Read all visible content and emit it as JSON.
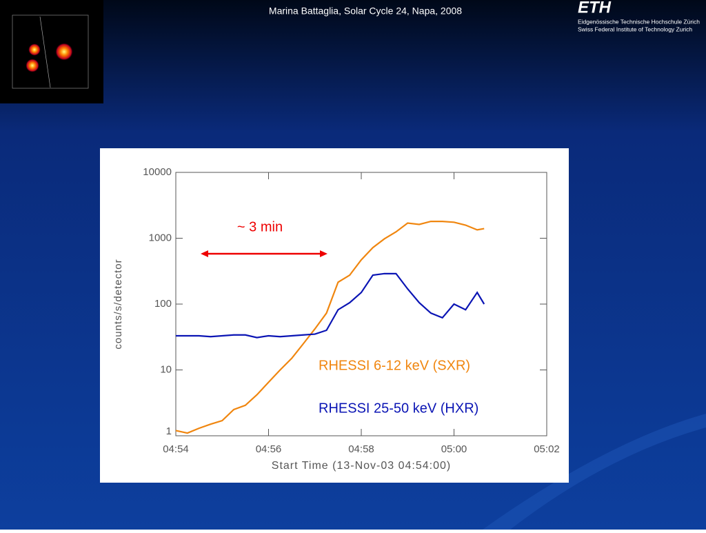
{
  "header": {
    "title": "Marina Battaglia, Solar Cycle 24, Napa, 2008"
  },
  "logo": {
    "name": "ETH",
    "line1": "Eidgenössische Technische Hochschule Zürich",
    "line2": "Swiss Federal Institute of Technology Zurich"
  },
  "chart_data": {
    "type": "line",
    "x": [
      0,
      0.25,
      0.5,
      0.75,
      1,
      1.25,
      1.5,
      1.75,
      2,
      2.25,
      2.5,
      2.75,
      3,
      3.25,
      3.5,
      3.75,
      4,
      4.25,
      4.5,
      4.75,
      5,
      5.25,
      5.5,
      5.75,
      6,
      6.25,
      6.5,
      6.65
    ],
    "series": [
      {
        "name": "RHESSI 6-12 keV (SXR)",
        "color": "#f0860f",
        "values": [
          1.2,
          1.1,
          1.3,
          1.5,
          1.7,
          2.5,
          2.9,
          4.2,
          6.5,
          10,
          15,
          25,
          42,
          73,
          215,
          275,
          470,
          720,
          980,
          1250,
          1700,
          1620,
          1800,
          1800,
          1750,
          1580,
          1340,
          1400
        ]
      },
      {
        "name": "RHESSI 25-50 keV (HXR)",
        "color": "#0a14b4",
        "values": [
          33,
          33,
          33,
          32,
          33,
          34,
          34,
          31,
          33,
          32,
          33,
          34,
          35,
          40,
          82,
          105,
          150,
          275,
          290,
          290,
          170,
          105,
          73,
          62,
          100,
          82,
          150,
          100
        ]
      }
    ],
    "xlim": [
      0,
      8
    ],
    "xticks": [
      {
        "value": 0,
        "label": "04:54"
      },
      {
        "value": 2,
        "label": "04:56"
      },
      {
        "value": 4,
        "label": "04:58"
      },
      {
        "value": 6,
        "label": "05:00"
      },
      {
        "value": 8,
        "label": "05:02"
      }
    ],
    "ylim": [
      1,
      10000
    ],
    "yticks": [
      1,
      10,
      100,
      1000,
      10000
    ],
    "log_y": true,
    "x_label": "Start Time (13-Nov-03 04:54:00)",
    "y_label": "counts/s/detector",
    "annotation": "~ 3 min"
  }
}
